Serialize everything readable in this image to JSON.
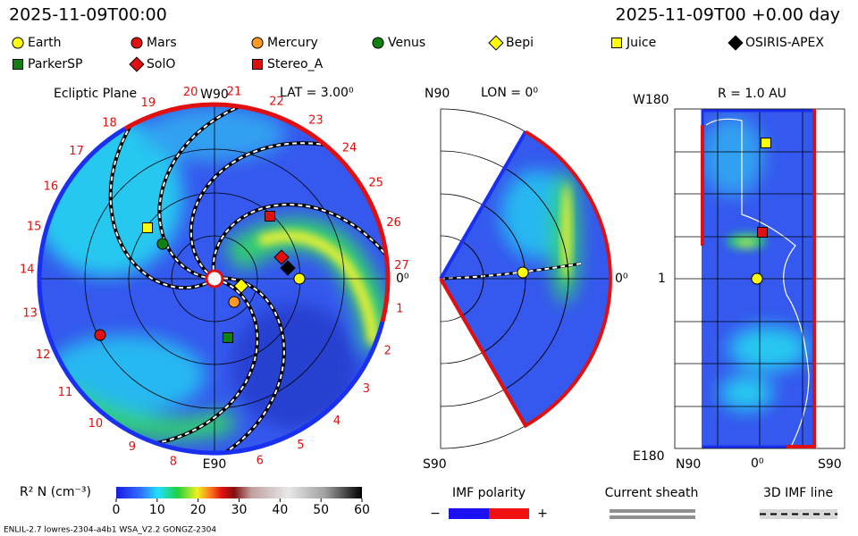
{
  "header": {
    "date_left": "2025-11-09T00:00",
    "date_right": "2025-11-09T00 +0.00 day"
  },
  "legend": [
    {
      "label": "Earth",
      "color": "#ffff00",
      "shape": "circle"
    },
    {
      "label": "Mars",
      "color": "#e01010",
      "shape": "circle"
    },
    {
      "label": "Mercury",
      "color": "#ff9a20",
      "shape": "circle"
    },
    {
      "label": "Venus",
      "color": "#108010",
      "shape": "circle"
    },
    {
      "label": "Bepi",
      "color": "#ffff00",
      "shape": "diamond"
    },
    {
      "label": "Juice",
      "color": "#ffff00",
      "shape": "square"
    },
    {
      "label": "OSIRIS-APEX",
      "color": "#000000",
      "shape": "diamond"
    },
    {
      "label": "ParkerSP",
      "color": "#108010",
      "shape": "square"
    },
    {
      "label": "SolO",
      "color": "#e01010",
      "shape": "diamond"
    },
    {
      "label": "Stereo_A",
      "color": "#e01010",
      "shape": "square"
    }
  ],
  "ecliptic": {
    "title": "Ecliptic Plane",
    "top_label": "W90",
    "lat_label": "LAT = 3.00⁰",
    "bottom_label": "E90",
    "right_label": "0⁰",
    "carrington": [
      "27",
      "26",
      "25",
      "24",
      "23",
      "22",
      "21",
      "20",
      "19",
      "18",
      "17",
      "16",
      "15",
      "14",
      "13",
      "12",
      "11",
      "10",
      "9",
      "8",
      null,
      "6",
      "5",
      "4",
      "3",
      "2",
      "1"
    ]
  },
  "meridional": {
    "top_label": "N90",
    "lon_label": "LON = 0⁰",
    "bottom_label": "S90",
    "right_label": "0⁰"
  },
  "radial": {
    "top_label": "W180",
    "r_label": "R = 1.0 AU",
    "mid_label": "1",
    "bottom_label": "E180",
    "x_labels": [
      "N90",
      "0⁰",
      "S90"
    ]
  },
  "colorbar": {
    "label": "R² N (cm⁻³)",
    "ticks": [
      0,
      10,
      20,
      30,
      40,
      50,
      60
    ]
  },
  "imf": {
    "title": "IMF polarity",
    "minus": "−",
    "plus": "+"
  },
  "sheath": {
    "title": "Current sheath"
  },
  "imf3d": {
    "title": "3D IMF line"
  },
  "footer": {
    "left": "ENLIL-2.7 lowres-2304-a4b1 WSA_V2.2 GONGZ-2304"
  }
}
